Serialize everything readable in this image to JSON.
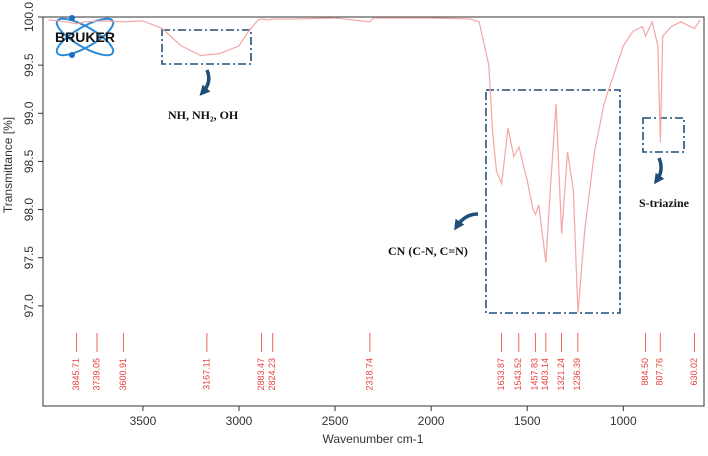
{
  "chart_data": {
    "type": "line",
    "logo": "BRUKER",
    "xlabel": "Wavenumber cm-1",
    "ylabel": "Transmittance [%]",
    "annotations": [
      "NH, NH₂, OH",
      "CN (C-N, C=N)",
      "S-triazine"
    ],
    "xlim": [
      4020,
      580
    ],
    "xticks": [
      3500,
      3000,
      2500,
      2000,
      1500,
      1000
    ],
    "ylim": [
      95.96,
      100.0
    ],
    "yticks": [
      {
        "value": 97.0,
        "label": "97.0"
      },
      97.5,
      {
        "value": 98.0,
        "label": "98.0"
      },
      98.5,
      {
        "value": 99.0,
        "label": "99.0"
      },
      99.5,
      {
        "value": 100.0,
        "label": "100.0"
      }
    ],
    "peaks": [
      3845.71,
      3739.05,
      3600.91,
      3167.11,
      2883.47,
      2824.23,
      2318.74,
      1633.87,
      1543.52,
      1457.83,
      1403.14,
      1321.24,
      1236.39,
      {
        "value": 884.5,
        "label": "884.50"
      },
      807.76,
      630.02
    ],
    "peak_color": "#e8413b",
    "series": [
      {
        "name": "Transmittance",
        "color": "#f4a6a6",
        "x": [
          3990,
          3900,
          3845,
          3800,
          3700,
          3600,
          3500,
          3400,
          3300,
          3200,
          3100,
          3000,
          2950,
          2900,
          2883,
          2850,
          2824,
          2700,
          2500,
          2320,
          2300,
          2000,
          1800,
          1750,
          1700,
          1680,
          1660,
          1633,
          1600,
          1570,
          1543,
          1500,
          1470,
          1457,
          1440,
          1403,
          1380,
          1350,
          1321,
          1290,
          1260,
          1236,
          1200,
          1150,
          1100,
          1050,
          1000,
          950,
          900,
          884,
          850,
          820,
          807,
          795,
          750,
          700,
          630,
          600
        ],
        "values": [
          99.97,
          99.95,
          99.93,
          99.95,
          99.96,
          99.95,
          99.96,
          99.88,
          99.7,
          99.6,
          99.62,
          99.7,
          99.85,
          99.97,
          99.98,
          99.97,
          99.98,
          99.98,
          99.99,
          99.95,
          99.99,
          99.99,
          99.98,
          99.95,
          99.5,
          98.8,
          98.4,
          98.27,
          98.85,
          98.55,
          98.65,
          98.3,
          98.0,
          97.95,
          98.05,
          97.45,
          98.2,
          99.1,
          97.75,
          98.6,
          98.2,
          96.93,
          97.8,
          98.6,
          99.1,
          99.4,
          99.7,
          99.85,
          99.9,
          99.8,
          99.95,
          99.7,
          98.7,
          99.8,
          99.9,
          99.95,
          99.88,
          99.97
        ]
      }
    ]
  }
}
